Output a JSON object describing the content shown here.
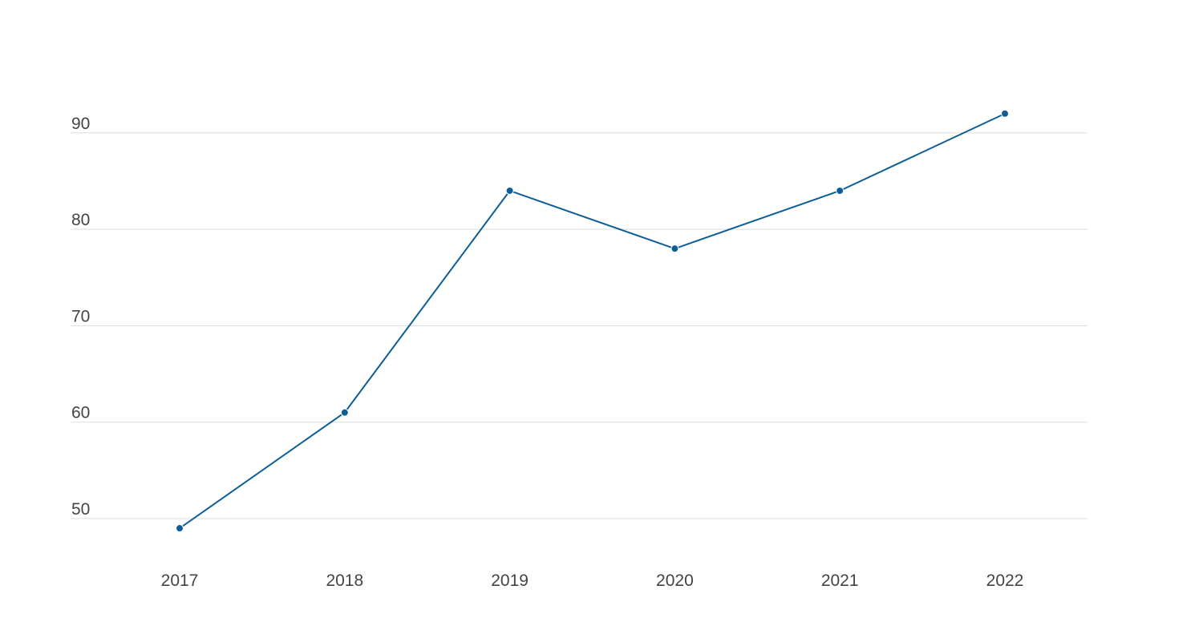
{
  "chart_data": {
    "type": "line",
    "title": "",
    "xlabel": "",
    "ylabel": "",
    "x": [
      "2017",
      "2018",
      "2019",
      "2020",
      "2021",
      "2022"
    ],
    "series": [
      {
        "values": [
          49,
          61,
          84,
          78,
          84,
          92
        ]
      }
    ],
    "ylim": [
      45,
      95
    ],
    "yticks": [
      50,
      60,
      70,
      80,
      90
    ],
    "grid": true,
    "legend": "none",
    "colors": {
      "series": "#0d5e96",
      "grid": "#dddddd",
      "tick_text": "#444444"
    }
  }
}
